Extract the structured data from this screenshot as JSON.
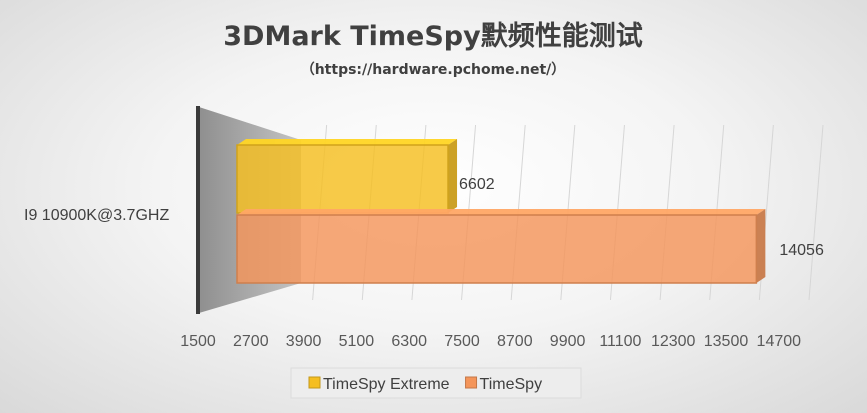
{
  "chart_data": {
    "type": "bar",
    "orientation": "horizontal",
    "style": "3d-clustered",
    "title": "3DMark TimeSpy默频性能测试",
    "subtitle": "（https://hardware.pchome.net/）",
    "categories": [
      "I9 10900K@3.7GHZ"
    ],
    "series": [
      {
        "name": "TimeSpy Extreme",
        "values": [
          6602
        ],
        "color": "#F5BE20"
      },
      {
        "name": "TimeSpy",
        "values": [
          14056
        ],
        "color": "#F4955A"
      }
    ],
    "xlim": [
      1500,
      14700
    ],
    "xticks": [
      "1500",
      "2700",
      "3900",
      "5100",
      "6300",
      "7500",
      "8700",
      "9900",
      "11100",
      "12300",
      "13500",
      "14700"
    ],
    "grid": true,
    "legend_position": "bottom",
    "data_labels": true
  }
}
